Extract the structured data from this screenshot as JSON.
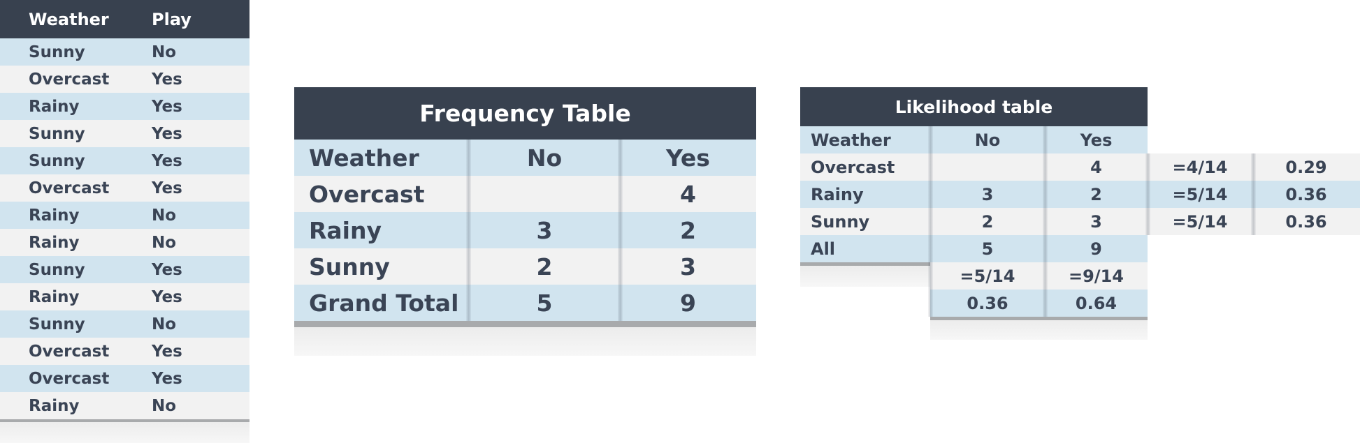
{
  "data_table": {
    "headers": [
      "Weather",
      "Play"
    ],
    "rows": [
      [
        "Sunny",
        "No"
      ],
      [
        "Overcast",
        "Yes"
      ],
      [
        "Rainy",
        "Yes"
      ],
      [
        "Sunny",
        "Yes"
      ],
      [
        "Sunny",
        "Yes"
      ],
      [
        "Overcast",
        "Yes"
      ],
      [
        "Rainy",
        "No"
      ],
      [
        "Rainy",
        "No"
      ],
      [
        "Sunny",
        "Yes"
      ],
      [
        "Rainy",
        "Yes"
      ],
      [
        "Sunny",
        "No"
      ],
      [
        "Overcast",
        "Yes"
      ],
      [
        "Overcast",
        "Yes"
      ],
      [
        "Rainy",
        "No"
      ]
    ]
  },
  "frequency_table": {
    "title": "Frequency Table",
    "headers": [
      "Weather",
      "No",
      "Yes"
    ],
    "rows": [
      [
        "Overcast",
        "",
        "4"
      ],
      [
        "Rainy",
        "3",
        "2"
      ],
      [
        "Sunny",
        "2",
        "3"
      ],
      [
        "Grand Total",
        "5",
        "9"
      ]
    ]
  },
  "likelihood_table": {
    "title": "Likelihood table",
    "headers": [
      "Weather",
      "No",
      "Yes"
    ],
    "rows": [
      [
        "Overcast",
        "",
        "4"
      ],
      [
        "Rainy",
        "3",
        "2"
      ],
      [
        "Sunny",
        "2",
        "3"
      ],
      [
        "All",
        "5",
        "9"
      ]
    ],
    "extra_rows": [
      [
        "=5/14",
        "=9/14"
      ],
      [
        "0.36",
        "0.64"
      ]
    ],
    "side_rows": [
      [
        "=4/14",
        "0.29"
      ],
      [
        "=5/14",
        "0.36"
      ],
      [
        "=5/14",
        "0.36"
      ]
    ]
  },
  "colors": {
    "header": "#38414f",
    "row_blue": "#d1e4ef",
    "row_gray": "#f2f2f2",
    "text": "#3a4455"
  }
}
